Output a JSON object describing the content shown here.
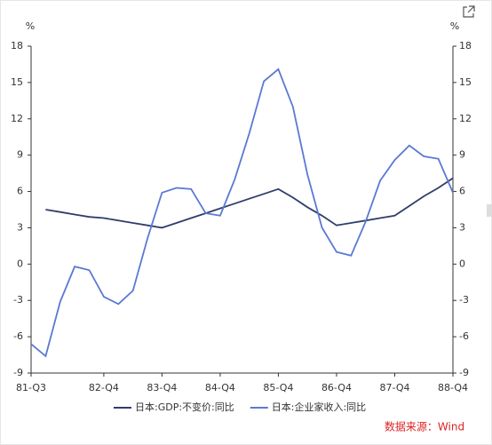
{
  "chart_data": {
    "type": "line",
    "y_unit": "%",
    "y2_unit": "%",
    "categories": [
      "81-Q3",
      null,
      null,
      null,
      null,
      "82-Q4",
      null,
      null,
      null,
      "83-Q4",
      null,
      null,
      null,
      "84-Q4",
      null,
      null,
      null,
      "85-Q4",
      null,
      null,
      null,
      "86-Q4",
      null,
      null,
      null,
      "87-Q4",
      null,
      null,
      null,
      "88-Q4"
    ],
    "series": [
      {
        "name": "日本:GDP:不变价:同比",
        "color": "#2f3d6b",
        "values": [
          null,
          4.5,
          4.3,
          4.1,
          3.9,
          3.8,
          3.6,
          3.4,
          3.2,
          3.0,
          3.4,
          3.8,
          4.2,
          4.6,
          5.0,
          5.4,
          5.8,
          6.2,
          5.5,
          4.7,
          4.0,
          3.2,
          3.4,
          3.6,
          3.8,
          4.0,
          4.8,
          5.6,
          6.3,
          7.1
        ]
      },
      {
        "name": "日本:企业家收入:同比",
        "color": "#5b79d4",
        "axis": "y2",
        "values": [
          -6.6,
          -7.6,
          -3.1,
          -0.2,
          -0.5,
          -2.7,
          -3.3,
          -2.2,
          2.1,
          5.9,
          6.3,
          6.2,
          4.2,
          4.0,
          7.0,
          10.8,
          15.1,
          16.1,
          13.0,
          7.4,
          3.0,
          1.0,
          0.7,
          3.5,
          6.9,
          8.6,
          9.8,
          8.9,
          8.7,
          5.9
        ]
      }
    ],
    "ylim": [
      -9,
      18
    ],
    "yticks": [
      -9,
      -6,
      -3,
      0,
      3,
      6,
      9,
      12,
      15,
      18
    ],
    "y2lim": [
      -9,
      18
    ],
    "y2ticks": [
      -9,
      -6,
      -3,
      0,
      3,
      6,
      9,
      12,
      15,
      18
    ],
    "source": "数据来源：Wind"
  }
}
